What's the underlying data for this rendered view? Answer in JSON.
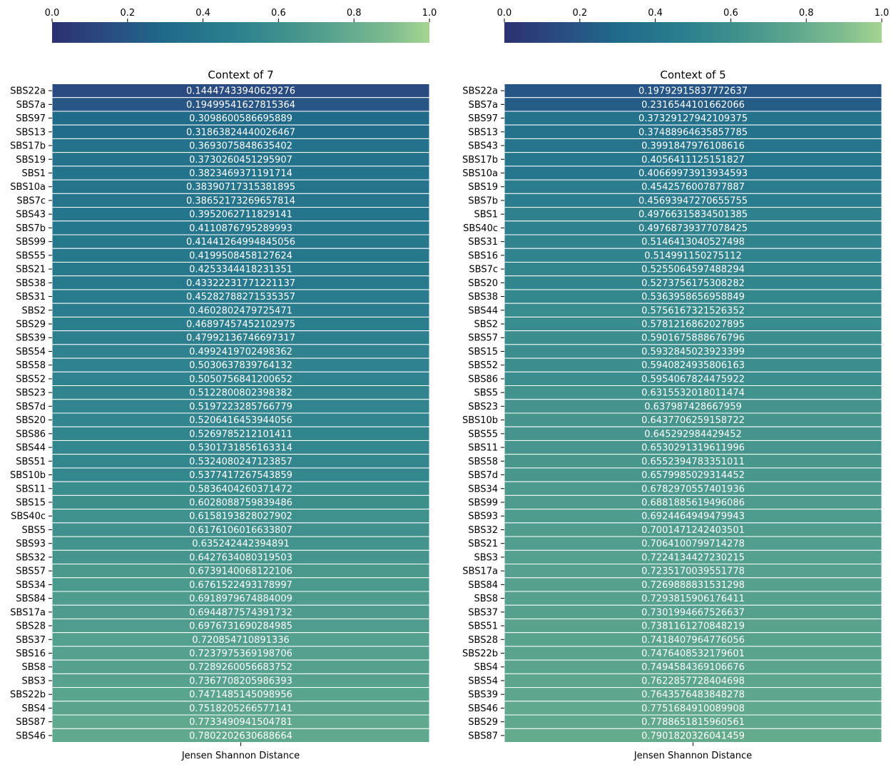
{
  "chart_data": [
    {
      "type": "heatmap",
      "title": "Context of 7",
      "xlabel": "Jensen Shannon Distance",
      "colorbar": {
        "min": 0,
        "max": 1,
        "ticks": [
          "0.0",
          "0.2",
          "0.4",
          "0.6",
          "0.8",
          "1.0"
        ],
        "placement": "top",
        "colormap": "crest"
      },
      "rows": [
        {
          "label": "SBS22a",
          "value": 0.14447433940629276,
          "text": "0.14447433940629276"
        },
        {
          "label": "SBS7a",
          "value": 0.19499541627815364,
          "text": "0.19499541627815364"
        },
        {
          "label": "SBS97",
          "value": 0.3098600586695889,
          "text": "0.3098600586695889"
        },
        {
          "label": "SBS13",
          "value": 0.31863824440026467,
          "text": "0.31863824440026467"
        },
        {
          "label": "SBS17b",
          "value": 0.3693075848635402,
          "text": "0.3693075848635402"
        },
        {
          "label": "SBS19",
          "value": 0.3730260451295907,
          "text": "0.3730260451295907"
        },
        {
          "label": "SBS1",
          "value": 0.38234693711917145,
          "text": "0.3823469371191714"
        },
        {
          "label": "SBS10a",
          "value": 0.38390717315381895,
          "text": "0.38390717315381895"
        },
        {
          "label": "SBS7c",
          "value": 0.38652173269657814,
          "text": "0.38652173269657814"
        },
        {
          "label": "SBS43",
          "value": 0.3952062711829141,
          "text": "0.3952062711829141"
        },
        {
          "label": "SBS7b",
          "value": 0.4110876795289993,
          "text": "0.4110876795289993"
        },
        {
          "label": "SBS99",
          "value": 0.41441264994845056,
          "text": "0.41441264994845056"
        },
        {
          "label": "SBS55",
          "value": 0.4199508458127624,
          "text": "0.4199508458127624"
        },
        {
          "label": "SBS21",
          "value": 0.4253344418231351,
          "text": "0.4253344418231351"
        },
        {
          "label": "SBS38",
          "value": 0.43322231771221137,
          "text": "0.43322231771221137"
        },
        {
          "label": "SBS31",
          "value": 0.45282788271535357,
          "text": "0.45282788271535357"
        },
        {
          "label": "SBS2",
          "value": 0.4602802479725471,
          "text": "0.4602802479725471"
        },
        {
          "label": "SBS29",
          "value": 0.46897457452102975,
          "text": "0.46897457452102975"
        },
        {
          "label": "SBS39",
          "value": 0.47992136746697317,
          "text": "0.47992136746697317"
        },
        {
          "label": "SBS54",
          "value": 0.4992419702498362,
          "text": "0.4992419702498362"
        },
        {
          "label": "SBS58",
          "value": 0.5030637839764132,
          "text": "0.5030637839764132"
        },
        {
          "label": "SBS52",
          "value": 0.5050756841200652,
          "text": "0.5050756841200652"
        },
        {
          "label": "SBS23",
          "value": 0.5122800802398382,
          "text": "0.5122800802398382"
        },
        {
          "label": "SBS7d",
          "value": 0.5197223285766779,
          "text": "0.5197223285766779"
        },
        {
          "label": "SBS20",
          "value": 0.5206416453944056,
          "text": "0.5206416453944056"
        },
        {
          "label": "SBS86",
          "value": 0.5269785212101411,
          "text": "0.5269785212101411"
        },
        {
          "label": "SBS44",
          "value": 0.5301731856163314,
          "text": "0.5301731856163314"
        },
        {
          "label": "SBS51",
          "value": 0.5324080247123857,
          "text": "0.5324080247123857"
        },
        {
          "label": "SBS10b",
          "value": 0.5377417267543859,
          "text": "0.5377417267543859"
        },
        {
          "label": "SBS11",
          "value": 0.5836404260371472,
          "text": "0.5836404260371472"
        },
        {
          "label": "SBS15",
          "value": 0.6028088759839486,
          "text": "0.6028088759839486"
        },
        {
          "label": "SBS40c",
          "value": 0.6158193828027902,
          "text": "0.6158193828027902"
        },
        {
          "label": "SBS5",
          "value": 0.6176106016633807,
          "text": "0.6176106016633807"
        },
        {
          "label": "SBS93",
          "value": 0.635242442394891,
          "text": "0.635242442394891"
        },
        {
          "label": "SBS32",
          "value": 0.6427634080319503,
          "text": "0.6427634080319503"
        },
        {
          "label": "SBS57",
          "value": 0.6739140068122106,
          "text": "0.6739140068122106"
        },
        {
          "label": "SBS34",
          "value": 0.6761522493178997,
          "text": "0.6761522493178997"
        },
        {
          "label": "SBS84",
          "value": 0.6918979674884009,
          "text": "0.6918979674884009"
        },
        {
          "label": "SBS17a",
          "value": 0.6944877574391732,
          "text": "0.6944877574391732"
        },
        {
          "label": "SBS28",
          "value": 0.6976731690284985,
          "text": "0.6976731690284985"
        },
        {
          "label": "SBS37",
          "value": 0.720854710891336,
          "text": "0.720854710891336"
        },
        {
          "label": "SBS16",
          "value": 0.7237975369198706,
          "text": "0.7237975369198706"
        },
        {
          "label": "SBS8",
          "value": 0.7289260056683752,
          "text": "0.7289260056683752"
        },
        {
          "label": "SBS3",
          "value": 0.7367708205986393,
          "text": "0.7367708205986393"
        },
        {
          "label": "SBS22b",
          "value": 0.7471485145098956,
          "text": "0.7471485145098956"
        },
        {
          "label": "SBS4",
          "value": 0.7518205266577141,
          "text": "0.7518205266577141"
        },
        {
          "label": "SBS87",
          "value": 0.7733490941504781,
          "text": "0.7733490941504781"
        },
        {
          "label": "SBS46",
          "value": 0.7802202630688664,
          "text": "0.7802202630688664"
        }
      ]
    },
    {
      "type": "heatmap",
      "title": "Context of 5",
      "xlabel": "Jensen Shannon Distance",
      "colorbar": {
        "min": 0,
        "max": 1,
        "ticks": [
          "0.0",
          "0.2",
          "0.4",
          "0.6",
          "0.8",
          "1.0"
        ],
        "placement": "top",
        "colormap": "crest"
      },
      "rows": [
        {
          "label": "SBS22a",
          "value": 0.19792915837772637,
          "text": "0.19792915837772637"
        },
        {
          "label": "SBS7a",
          "value": 0.2316544101662066,
          "text": "0.2316544101662066"
        },
        {
          "label": "SBS97",
          "value": 0.37329127942109375,
          "text": "0.37329127942109375"
        },
        {
          "label": "SBS13",
          "value": 0.37488964635857785,
          "text": "0.37488964635857785"
        },
        {
          "label": "SBS43",
          "value": 0.3991847976108616,
          "text": "0.3991847976108616"
        },
        {
          "label": "SBS17b",
          "value": 0.4056411125151827,
          "text": "0.4056411125151827"
        },
        {
          "label": "SBS10a",
          "value": 0.40669973913934593,
          "text": "0.40669973913934593"
        },
        {
          "label": "SBS19",
          "value": 0.4542576007877887,
          "text": "0.4542576007877887"
        },
        {
          "label": "SBS7b",
          "value": 0.45693947270655755,
          "text": "0.45693947270655755"
        },
        {
          "label": "SBS1",
          "value": 0.49766315834501385,
          "text": "0.49766315834501385"
        },
        {
          "label": "SBS40c",
          "value": 0.49768739377078425,
          "text": "0.49768739377078425"
        },
        {
          "label": "SBS31",
          "value": 0.5146413040527498,
          "text": "0.5146413040527498"
        },
        {
          "label": "SBS16",
          "value": 0.514991150275112,
          "text": "0.514991150275112"
        },
        {
          "label": "SBS7c",
          "value": 0.5255064597488294,
          "text": "0.5255064597488294"
        },
        {
          "label": "SBS20",
          "value": 0.5273756175308282,
          "text": "0.5273756175308282"
        },
        {
          "label": "SBS38",
          "value": 0.5363958656958849,
          "text": "0.5363958656958849"
        },
        {
          "label": "SBS44",
          "value": 0.5756167321526352,
          "text": "0.5756167321526352"
        },
        {
          "label": "SBS2",
          "value": 0.5781216862027895,
          "text": "0.5781216862027895"
        },
        {
          "label": "SBS57",
          "value": 0.5901675888676796,
          "text": "0.5901675888676796"
        },
        {
          "label": "SBS15",
          "value": 0.5932845023923399,
          "text": "0.5932845023923399"
        },
        {
          "label": "SBS52",
          "value": 0.5940824935806163,
          "text": "0.5940824935806163"
        },
        {
          "label": "SBS86",
          "value": 0.5954067824475922,
          "text": "0.5954067824475922"
        },
        {
          "label": "SBS5",
          "value": 0.6315532018011474,
          "text": "0.6315532018011474"
        },
        {
          "label": "SBS23",
          "value": 0.637987428667959,
          "text": "0.637987428667959"
        },
        {
          "label": "SBS10b",
          "value": 0.6437706259158722,
          "text": "0.6437706259158722"
        },
        {
          "label": "SBS55",
          "value": 0.645292984429452,
          "text": "0.645292984429452"
        },
        {
          "label": "SBS11",
          "value": 0.6530291319611996,
          "text": "0.6530291319611996"
        },
        {
          "label": "SBS58",
          "value": 0.6552394783351011,
          "text": "0.6552394783351011"
        },
        {
          "label": "SBS7d",
          "value": 0.6579985029314452,
          "text": "0.6579985029314452"
        },
        {
          "label": "SBS34",
          "value": 0.6782970557401936,
          "text": "0.6782970557401936"
        },
        {
          "label": "SBS99",
          "value": 0.6881885619496086,
          "text": "0.6881885619496086"
        },
        {
          "label": "SBS93",
          "value": 0.6924464949479943,
          "text": "0.6924464949479943"
        },
        {
          "label": "SBS32",
          "value": 0.7001471242403501,
          "text": "0.7001471242403501"
        },
        {
          "label": "SBS21",
          "value": 0.7064100799714278,
          "text": "0.7064100799714278"
        },
        {
          "label": "SBS3",
          "value": 0.7224134427230215,
          "text": "0.7224134427230215"
        },
        {
          "label": "SBS17a",
          "value": 0.7235170039551778,
          "text": "0.7235170039551778"
        },
        {
          "label": "SBS84",
          "value": 0.7269888831531298,
          "text": "0.7269888831531298"
        },
        {
          "label": "SBS8",
          "value": 0.7293815906176411,
          "text": "0.7293815906176411"
        },
        {
          "label": "SBS37",
          "value": 0.7301994667526637,
          "text": "0.7301994667526637"
        },
        {
          "label": "SBS51",
          "value": 0.7381161270848219,
          "text": "0.7381161270848219"
        },
        {
          "label": "SBS28",
          "value": 0.7418407964776056,
          "text": "0.7418407964776056"
        },
        {
          "label": "SBS22b",
          "value": 0.7476408532179601,
          "text": "0.7476408532179601"
        },
        {
          "label": "SBS4",
          "value": 0.7494584369106676,
          "text": "0.7494584369106676"
        },
        {
          "label": "SBS54",
          "value": 0.7622857728404698,
          "text": "0.7622857728404698"
        },
        {
          "label": "SBS39",
          "value": 0.7643576483848278,
          "text": "0.7643576483848278"
        },
        {
          "label": "SBS46",
          "value": 0.7751684910089908,
          "text": "0.7751684910089908"
        },
        {
          "label": "SBS29",
          "value": 0.7788651815960561,
          "text": "0.7788651815960561"
        },
        {
          "label": "SBS87",
          "value": 0.7901820326041459,
          "text": "0.7901820326041459"
        }
      ]
    }
  ]
}
